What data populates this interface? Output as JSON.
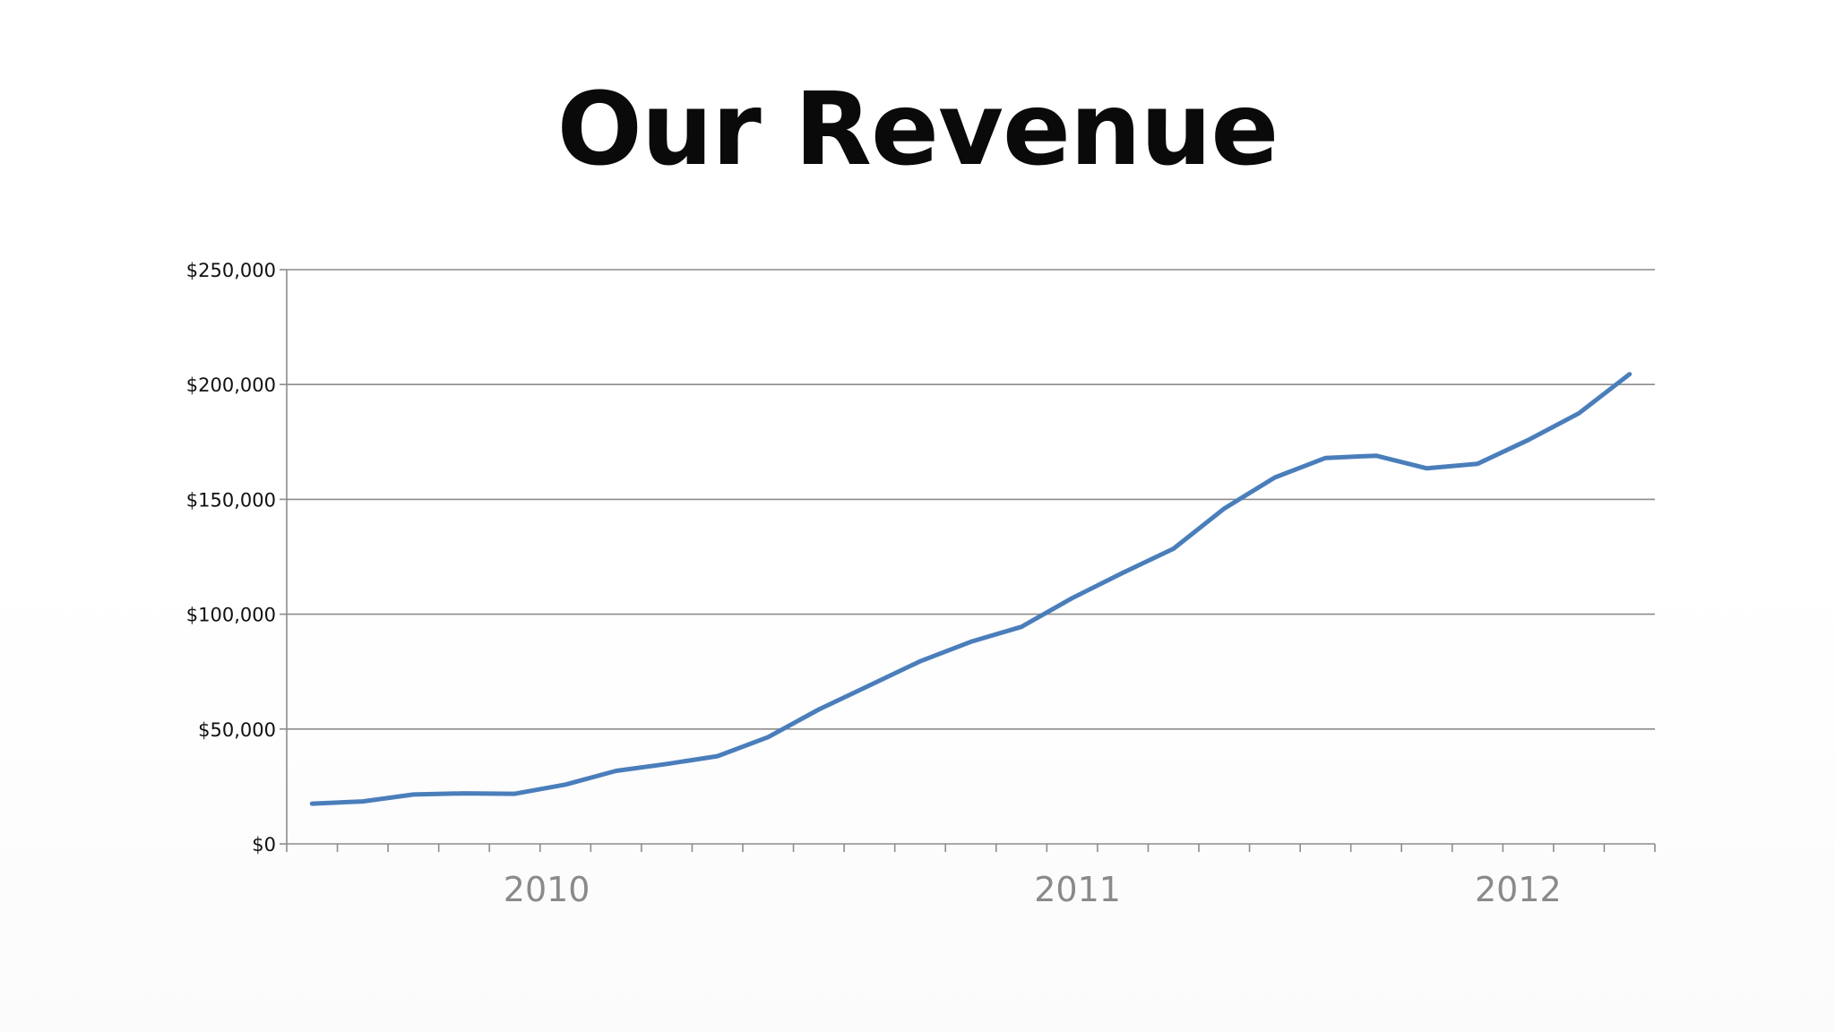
{
  "title": "Our Revenue",
  "chart_data": {
    "type": "line",
    "title": "",
    "xlabel": "",
    "ylabel": "",
    "ylim": [
      0,
      250000
    ],
    "yticks": [
      0,
      50000,
      100000,
      150000,
      200000,
      250000
    ],
    "ytick_labels": [
      "$0",
      "$50,000",
      "$100,000",
      "$150,000",
      "$200,000",
      "$250,000"
    ],
    "xtick_labels": [
      "2010",
      "2011",
      "2012"
    ],
    "num_periods": 27,
    "grid": true,
    "legend": "none",
    "line_color": "#4a7ebb",
    "series": [
      {
        "values": [
          17500,
          18500,
          21500,
          22000,
          21800,
          25800,
          31800,
          34800,
          38200,
          46500,
          58500,
          69000,
          79500,
          88000,
          94500,
          107000,
          118000,
          128500,
          146000,
          159500,
          168000,
          169000,
          163500,
          165500,
          175800,
          187500,
          204500
        ]
      }
    ]
  }
}
